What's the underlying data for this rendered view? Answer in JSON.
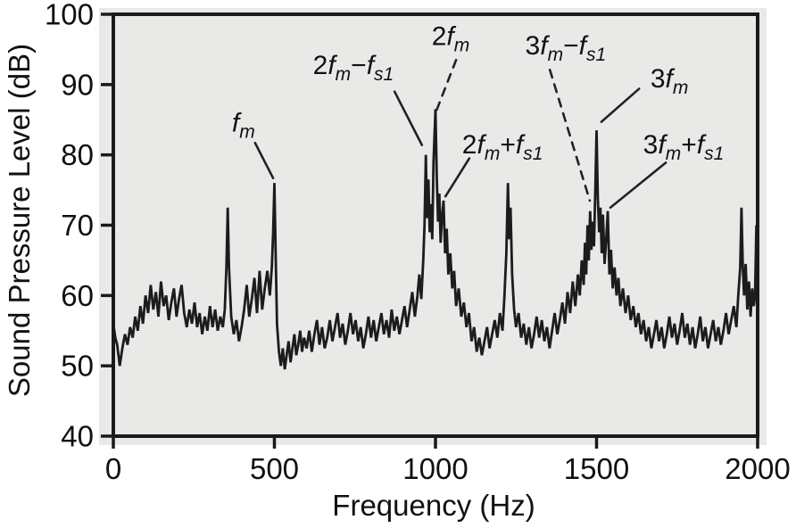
{
  "figure": {
    "bg_color": "#ffffff",
    "plot_bg_color": "#e9e9e7",
    "axis_color": "#1a1a1a",
    "line_color": "#1c1c1c",
    "annotation_color": "#222222"
  },
  "chart_data": {
    "type": "line",
    "title": "",
    "xlabel": "Frequency (Hz)",
    "ylabel": "Sound Pressure Level (dB)",
    "xlim": [
      0,
      2000
    ],
    "ylim": [
      40,
      100
    ],
    "x_ticks": [
      0,
      500,
      1000,
      1500,
      2000
    ],
    "y_ticks": [
      100,
      90,
      80,
      70,
      60,
      50,
      40
    ],
    "grid": false,
    "legend": false,
    "peaks": [
      {
        "annotation": "f_m",
        "frequency_hz": 500,
        "level_db": 76
      },
      {
        "annotation": "2f_m−f_s1",
        "frequency_hz": 970,
        "level_db": 80
      },
      {
        "annotation": "2f_m",
        "frequency_hz": 1000,
        "level_db": 86.5
      },
      {
        "annotation": "2f_m+f_s1",
        "frequency_hz": 1025,
        "level_db": 73.5
      },
      {
        "annotation": "3f_m−f_s1",
        "frequency_hz": 1480,
        "level_db": 72
      },
      {
        "annotation": "3f_m",
        "frequency_hz": 1500,
        "level_db": 83.5
      },
      {
        "annotation": "3f_m+f_s1",
        "frequency_hz": 1535,
        "level_db": 72
      },
      {
        "annotation": "",
        "frequency_hz": 355,
        "level_db": 72.5
      },
      {
        "annotation": "",
        "frequency_hz": 1225,
        "level_db": 76
      },
      {
        "annotation": "",
        "frequency_hz": 1950,
        "level_db": 72.5
      }
    ],
    "annotations": [
      {
        "text": "f_m",
        "label_f": 404,
        "label_db": 84.7,
        "line_f": [
          440,
          496
        ],
        "line_db": [
          81.7,
          76.7
        ],
        "dashed": false
      },
      {
        "text": "2f_m−f_s1",
        "label_f": 745,
        "label_db": 92.9,
        "line_f": [
          873,
          958
        ],
        "line_db": [
          89.0,
          81.4
        ],
        "dashed": false
      },
      {
        "text": "2f_m",
        "label_f": 1047,
        "label_db": 97.0,
        "line_f": [
          1064,
          1003
        ],
        "line_db": [
          93.5,
          86.3
        ],
        "dashed": true
      },
      {
        "text": "2f_m+f_s1",
        "label_f": 1208,
        "label_db": 81.6,
        "line_f": [
          1105,
          1031
        ],
        "line_db": [
          79.5,
          74.1
        ],
        "dashed": false
      },
      {
        "text": "3f_m−f_s1",
        "label_f": 1404,
        "label_db": 95.7,
        "line_f": [
          1355,
          1479
        ],
        "line_db": [
          92.1,
          73.5
        ],
        "dashed": true
      },
      {
        "text": "3f_m",
        "label_f": 1726,
        "label_db": 91.0,
        "line_f": [
          1632,
          1515
        ],
        "line_db": [
          89.4,
          84.7
        ],
        "dashed": false
      },
      {
        "text": "3f_m+f_s1",
        "label_f": 1770,
        "label_db": 81.6,
        "line_f": [
          1715,
          1543
        ],
        "line_db": [
          78.9,
          72.5
        ],
        "dashed": false
      }
    ],
    "series": [
      [
        0,
        56
      ],
      [
        6,
        54
      ],
      [
        12,
        53
      ],
      [
        20,
        50
      ],
      [
        28,
        52.5
      ],
      [
        36,
        54.5
      ],
      [
        44,
        53
      ],
      [
        52,
        55.5
      ],
      [
        60,
        54
      ],
      [
        68,
        57
      ],
      [
        76,
        55
      ],
      [
        84,
        58.5
      ],
      [
        92,
        56
      ],
      [
        100,
        60
      ],
      [
        108,
        57.5
      ],
      [
        116,
        61.5
      ],
      [
        124,
        58
      ],
      [
        132,
        60.5
      ],
      [
        140,
        57
      ],
      [
        148,
        62
      ],
      [
        156,
        58.5
      ],
      [
        164,
        60
      ],
      [
        172,
        56.5
      ],
      [
        180,
        59
      ],
      [
        188,
        61
      ],
      [
        196,
        57
      ],
      [
        204,
        59.5
      ],
      [
        212,
        61.5
      ],
      [
        220,
        57.5
      ],
      [
        228,
        55.5
      ],
      [
        236,
        58
      ],
      [
        244,
        56
      ],
      [
        252,
        59
      ],
      [
        260,
        55.5
      ],
      [
        268,
        57.5
      ],
      [
        276,
        54.5
      ],
      [
        284,
        57
      ],
      [
        292,
        55
      ],
      [
        300,
        58.5
      ],
      [
        308,
        55.5
      ],
      [
        316,
        58
      ],
      [
        324,
        55
      ],
      [
        332,
        57
      ],
      [
        340,
        55.5
      ],
      [
        346,
        58
      ],
      [
        351,
        64
      ],
      [
        355,
        72.5
      ],
      [
        359,
        64
      ],
      [
        366,
        57
      ],
      [
        374,
        54.5
      ],
      [
        382,
        56.5
      ],
      [
        390,
        53.5
      ],
      [
        398,
        55.5
      ],
      [
        406,
        58
      ],
      [
        414,
        61.5
      ],
      [
        422,
        57
      ],
      [
        430,
        59.5
      ],
      [
        438,
        62.5
      ],
      [
        446,
        57.5
      ],
      [
        454,
        63.5
      ],
      [
        462,
        58
      ],
      [
        470,
        61
      ],
      [
        478,
        63.5
      ],
      [
        486,
        60
      ],
      [
        492,
        64
      ],
      [
        496,
        69
      ],
      [
        500,
        76
      ],
      [
        504,
        66
      ],
      [
        508,
        56
      ],
      [
        514,
        52
      ],
      [
        520,
        50
      ],
      [
        526,
        52.5
      ],
      [
        532,
        49.5
      ],
      [
        538,
        51.5
      ],
      [
        544,
        53.5
      ],
      [
        550,
        50.5
      ],
      [
        556,
        52.5
      ],
      [
        562,
        54.5
      ],
      [
        568,
        51.5
      ],
      [
        574,
        53
      ],
      [
        580,
        55
      ],
      [
        586,
        52
      ],
      [
        592,
        54
      ],
      [
        600,
        52.5
      ],
      [
        608,
        55
      ],
      [
        616,
        52
      ],
      [
        624,
        54.5
      ],
      [
        632,
        56.5
      ],
      [
        640,
        53
      ],
      [
        648,
        55.5
      ],
      [
        656,
        52.5
      ],
      [
        664,
        54
      ],
      [
        672,
        56.5
      ],
      [
        680,
        53.5
      ],
      [
        688,
        55.5
      ],
      [
        696,
        57.5
      ],
      [
        704,
        54
      ],
      [
        712,
        56
      ],
      [
        720,
        53
      ],
      [
        728,
        55
      ],
      [
        736,
        57.5
      ],
      [
        744,
        54.5
      ],
      [
        752,
        56.5
      ],
      [
        760,
        53.5
      ],
      [
        768,
        55.5
      ],
      [
        776,
        52.5
      ],
      [
        784,
        54.5
      ],
      [
        792,
        57
      ],
      [
        800,
        54
      ],
      [
        808,
        56.5
      ],
      [
        816,
        53.5
      ],
      [
        824,
        55.5
      ],
      [
        832,
        57.5
      ],
      [
        840,
        54.5
      ],
      [
        848,
        56.5
      ],
      [
        856,
        54
      ],
      [
        864,
        58
      ],
      [
        872,
        55
      ],
      [
        880,
        57
      ],
      [
        888,
        54.5
      ],
      [
        896,
        56.5
      ],
      [
        904,
        58.5
      ],
      [
        912,
        55.5
      ],
      [
        920,
        58
      ],
      [
        928,
        60.5
      ],
      [
        936,
        57
      ],
      [
        944,
        60
      ],
      [
        950,
        63
      ],
      [
        956,
        59.5
      ],
      [
        962,
        65
      ],
      [
        966,
        70
      ],
      [
        970,
        80
      ],
      [
        974,
        71
      ],
      [
        978,
        76.5
      ],
      [
        982,
        69
      ],
      [
        986,
        73
      ],
      [
        990,
        68
      ],
      [
        994,
        79
      ],
      [
        1000,
        86.5
      ],
      [
        1004,
        77
      ],
      [
        1008,
        70.5
      ],
      [
        1012,
        74.5
      ],
      [
        1016,
        67.5
      ],
      [
        1020,
        71
      ],
      [
        1025,
        73.5
      ],
      [
        1030,
        66
      ],
      [
        1035,
        69.5
      ],
      [
        1040,
        63
      ],
      [
        1046,
        66
      ],
      [
        1052,
        61
      ],
      [
        1058,
        63.5
      ],
      [
        1064,
        58.5
      ],
      [
        1072,
        61
      ],
      [
        1080,
        57
      ],
      [
        1088,
        59
      ],
      [
        1096,
        55.5
      ],
      [
        1104,
        57.5
      ],
      [
        1112,
        53.5
      ],
      [
        1120,
        55.5
      ],
      [
        1128,
        52
      ],
      [
        1136,
        54
      ],
      [
        1144,
        51.5
      ],
      [
        1152,
        53.5
      ],
      [
        1160,
        55.5
      ],
      [
        1168,
        52.5
      ],
      [
        1176,
        54.5
      ],
      [
        1184,
        56.5
      ],
      [
        1192,
        54
      ],
      [
        1200,
        57.5
      ],
      [
        1208,
        55
      ],
      [
        1214,
        60
      ],
      [
        1220,
        66
      ],
      [
        1225,
        76
      ],
      [
        1229,
        68
      ],
      [
        1233,
        72.5
      ],
      [
        1238,
        63
      ],
      [
        1244,
        58
      ],
      [
        1250,
        55.5
      ],
      [
        1258,
        57.5
      ],
      [
        1266,
        54
      ],
      [
        1274,
        56
      ],
      [
        1282,
        53
      ],
      [
        1290,
        55.5
      ],
      [
        1298,
        52.5
      ],
      [
        1306,
        54.5
      ],
      [
        1314,
        57
      ],
      [
        1322,
        54
      ],
      [
        1330,
        56.5
      ],
      [
        1338,
        53.5
      ],
      [
        1346,
        55.5
      ],
      [
        1354,
        52.5
      ],
      [
        1362,
        55
      ],
      [
        1370,
        57.5
      ],
      [
        1378,
        54.5
      ],
      [
        1386,
        56.5
      ],
      [
        1394,
        59
      ],
      [
        1402,
        56
      ],
      [
        1410,
        60.5
      ],
      [
        1418,
        57.5
      ],
      [
        1426,
        62
      ],
      [
        1434,
        58.5
      ],
      [
        1442,
        63
      ],
      [
        1448,
        60
      ],
      [
        1454,
        65
      ],
      [
        1460,
        61.5
      ],
      [
        1464,
        67.5
      ],
      [
        1468,
        63
      ],
      [
        1472,
        70
      ],
      [
        1476,
        65
      ],
      [
        1480,
        72
      ],
      [
        1484,
        66.5
      ],
      [
        1488,
        70.5
      ],
      [
        1492,
        67
      ],
      [
        1496,
        75
      ],
      [
        1500,
        83.5
      ],
      [
        1504,
        74
      ],
      [
        1508,
        69
      ],
      [
        1512,
        72.5
      ],
      [
        1516,
        66
      ],
      [
        1520,
        71.5
      ],
      [
        1525,
        64.5
      ],
      [
        1530,
        68
      ],
      [
        1535,
        72
      ],
      [
        1540,
        63
      ],
      [
        1545,
        66.5
      ],
      [
        1550,
        61
      ],
      [
        1556,
        64
      ],
      [
        1562,
        60
      ],
      [
        1568,
        62.5
      ],
      [
        1574,
        58.5
      ],
      [
        1582,
        61
      ],
      [
        1590,
        57.5
      ],
      [
        1598,
        60
      ],
      [
        1606,
        56.5
      ],
      [
        1614,
        58.5
      ],
      [
        1622,
        55.5
      ],
      [
        1630,
        57.5
      ],
      [
        1638,
        54.5
      ],
      [
        1646,
        56.5
      ],
      [
        1654,
        53.5
      ],
      [
        1662,
        55.5
      ],
      [
        1670,
        52.5
      ],
      [
        1678,
        54.5
      ],
      [
        1686,
        56.5
      ],
      [
        1694,
        53.5
      ],
      [
        1702,
        55.5
      ],
      [
        1710,
        52.5
      ],
      [
        1718,
        54.5
      ],
      [
        1726,
        57
      ],
      [
        1734,
        54
      ],
      [
        1742,
        56
      ],
      [
        1750,
        53
      ],
      [
        1758,
        55
      ],
      [
        1766,
        57.5
      ],
      [
        1774,
        54
      ],
      [
        1782,
        56
      ],
      [
        1790,
        53
      ],
      [
        1798,
        55.5
      ],
      [
        1806,
        52.5
      ],
      [
        1814,
        54.5
      ],
      [
        1822,
        57
      ],
      [
        1830,
        53.5
      ],
      [
        1838,
        55.5
      ],
      [
        1846,
        52.5
      ],
      [
        1854,
        54.5
      ],
      [
        1862,
        56.5
      ],
      [
        1870,
        53.5
      ],
      [
        1878,
        55.5
      ],
      [
        1886,
        53
      ],
      [
        1894,
        55
      ],
      [
        1902,
        57.5
      ],
      [
        1910,
        54.5
      ],
      [
        1918,
        56.5
      ],
      [
        1926,
        58.5
      ],
      [
        1934,
        55.5
      ],
      [
        1940,
        60
      ],
      [
        1946,
        64
      ],
      [
        1950,
        72.5
      ],
      [
        1954,
        64
      ],
      [
        1958,
        60
      ],
      [
        1963,
        64.5
      ],
      [
        1968,
        58
      ],
      [
        1973,
        62
      ],
      [
        1978,
        57
      ],
      [
        1983,
        61
      ],
      [
        1988,
        58.5
      ],
      [
        1992,
        60
      ],
      [
        1996,
        70
      ],
      [
        2000,
        62
      ]
    ]
  }
}
